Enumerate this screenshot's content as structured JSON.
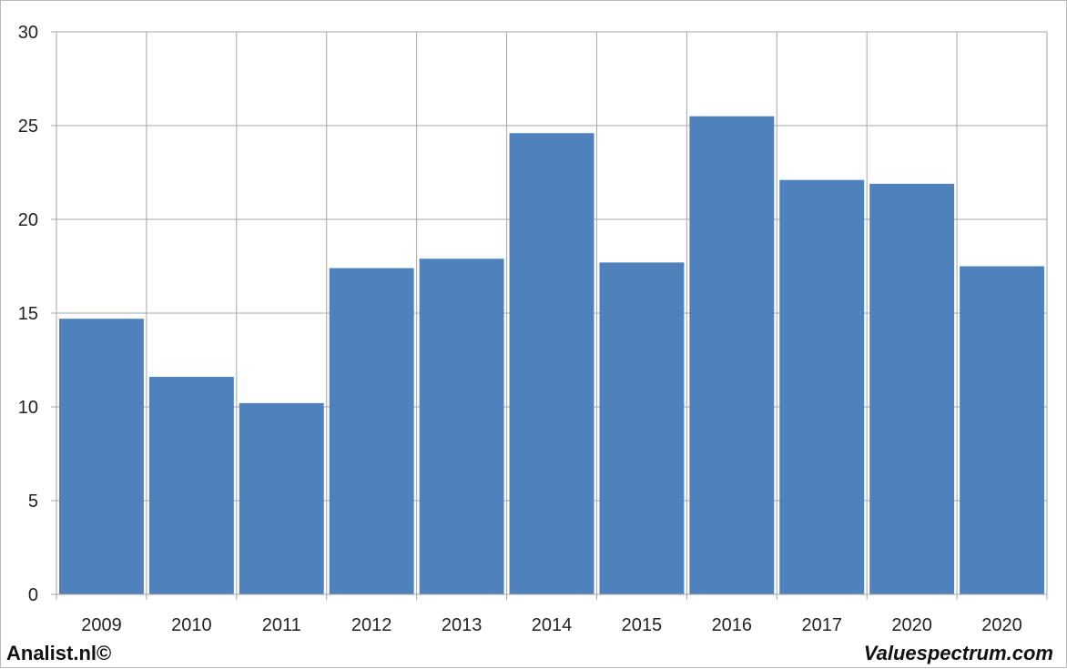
{
  "chart_data": {
    "type": "bar",
    "categories": [
      "2009",
      "2010",
      "2011",
      "2012",
      "2013",
      "2014",
      "2015",
      "2016",
      "2017",
      "2020",
      "2020"
    ],
    "values": [
      14.7,
      11.6,
      10.2,
      17.4,
      17.9,
      24.6,
      17.7,
      25.5,
      22.1,
      21.9,
      17.5
    ],
    "title": "",
    "xlabel": "",
    "ylabel": "",
    "ylim": [
      0,
      30
    ],
    "yticks": [
      0,
      5,
      10,
      15,
      20,
      25,
      30
    ],
    "grid": true,
    "bar_color": "#4f81bd"
  },
  "footer": {
    "left": "Analist.nl©",
    "right": "Valuespectrum.com"
  }
}
